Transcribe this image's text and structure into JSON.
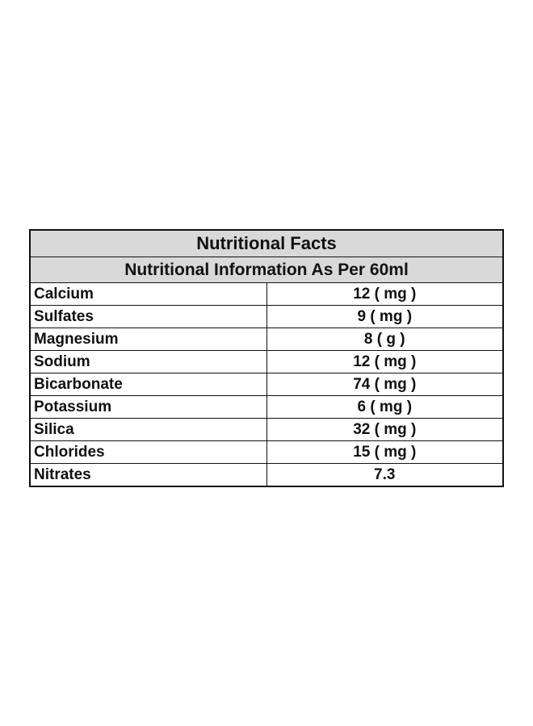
{
  "table": {
    "title": "Nutritional Facts",
    "subtitle": "Nutritional Information As Per 60ml",
    "rows": [
      [
        "Calcium",
        "12 ( mg )"
      ],
      [
        "Sulfates",
        "9 ( mg )"
      ],
      [
        "Magnesium",
        "8 ( g )"
      ],
      [
        "Sodium",
        "12 ( mg )"
      ],
      [
        "Bicarbonate",
        "74 ( mg )"
      ],
      [
        "Potassium",
        "6 ( mg )"
      ],
      [
        "Silica",
        "32 ( mg )"
      ],
      [
        "Chlorides",
        "15 ( mg )"
      ],
      [
        "Nitrates",
        "7.3"
      ]
    ]
  }
}
